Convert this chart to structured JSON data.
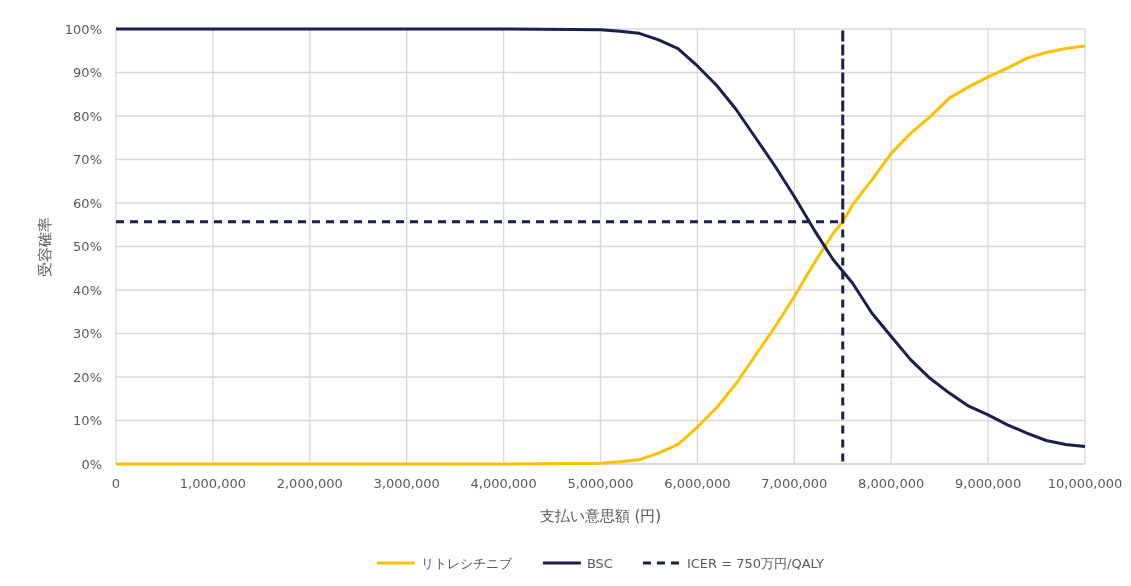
{
  "chart_data": {
    "type": "line",
    "xlabel": "支払い意思額 (円)",
    "ylabel": "受容確率",
    "xlim": [
      0,
      10000000
    ],
    "ylim": [
      0,
      100
    ],
    "xticks": [
      {
        "value": 0,
        "label": "0"
      },
      {
        "value": 1000000,
        "label": "1,000,000"
      },
      {
        "value": 2000000,
        "label": "2,000,000"
      },
      {
        "value": 3000000,
        "label": "3,000,000"
      },
      {
        "value": 4000000,
        "label": "4,000,000"
      },
      {
        "value": 5000000,
        "label": "5,000,000"
      },
      {
        "value": 6000000,
        "label": "6,000,000"
      },
      {
        "value": 7000000,
        "label": "7,000,000"
      },
      {
        "value": 8000000,
        "label": "8,000,000"
      },
      {
        "value": 9000000,
        "label": "9,000,000"
      },
      {
        "value": 10000000,
        "label": "10,000,000"
      }
    ],
    "yticks": [
      {
        "value": 0,
        "label": "0%"
      },
      {
        "value": 10,
        "label": "10%"
      },
      {
        "value": 20,
        "label": "20%"
      },
      {
        "value": 30,
        "label": "30%"
      },
      {
        "value": 40,
        "label": "40%"
      },
      {
        "value": 50,
        "label": "50%"
      },
      {
        "value": 60,
        "label": "60%"
      },
      {
        "value": 70,
        "label": "70%"
      },
      {
        "value": 80,
        "label": "80%"
      },
      {
        "value": 90,
        "label": "90%"
      },
      {
        "value": 100,
        "label": "100%"
      }
    ],
    "grid": true,
    "legend": "bottom",
    "marker": "none",
    "series": [
      {
        "name": "リトレシチニブ",
        "color": "#ffc000",
        "line_style": "solid",
        "x": [
          0,
          1000000,
          2000000,
          3000000,
          4000000,
          4700000,
          5000000,
          5200000,
          5400000,
          5600000,
          5800000,
          6000000,
          6200000,
          6400000,
          6600000,
          6800000,
          7000000,
          7200000,
          7400000,
          7500000,
          7600000,
          7800000,
          8000000,
          8200000,
          8400000,
          8600000,
          8800000,
          9000000,
          9200000,
          9400000,
          9600000,
          9800000,
          10000000
        ],
        "values": [
          0,
          0,
          0,
          0,
          0,
          0.1,
          0.2,
          0.5,
          1,
          2.5,
          4.5,
          8.5,
          13,
          18.5,
          25,
          31.5,
          38.5,
          46,
          53,
          55.7,
          59.5,
          65.3,
          71.4,
          76,
          79.8,
          84.1,
          86.7,
          89,
          91,
          93.3,
          94.6,
          95.5,
          96.1
        ]
      },
      {
        "name": "BSC",
        "color": "#1a1f4e",
        "line_style": "solid",
        "x": [
          0,
          1000000,
          2000000,
          3000000,
          4000000,
          4700000,
          5000000,
          5200000,
          5400000,
          5600000,
          5800000,
          6000000,
          6200000,
          6400000,
          6600000,
          6800000,
          7000000,
          7200000,
          7400000,
          7500000,
          7600000,
          7800000,
          8000000,
          8200000,
          8400000,
          8600000,
          8800000,
          9000000,
          9200000,
          9400000,
          9600000,
          9800000,
          10000000
        ],
        "values": [
          100,
          100,
          100,
          100,
          100,
          99.9,
          99.8,
          99.5,
          99,
          97.5,
          95.5,
          91.5,
          87,
          81.5,
          75,
          68.5,
          61.5,
          54,
          47,
          44.3,
          41.6,
          34.7,
          29.3,
          24,
          19.7,
          16.3,
          13.3,
          11.3,
          9,
          7.1,
          5.4,
          4.5,
          4
        ]
      },
      {
        "name": "ICER = 750万円/QALY",
        "color": "#1a1f4e",
        "line_style": "dashed",
        "x": [
          0,
          7500000,
          7500000,
          7500000
        ],
        "values": [
          55.7,
          55.7,
          100,
          0
        ]
      }
    ]
  }
}
